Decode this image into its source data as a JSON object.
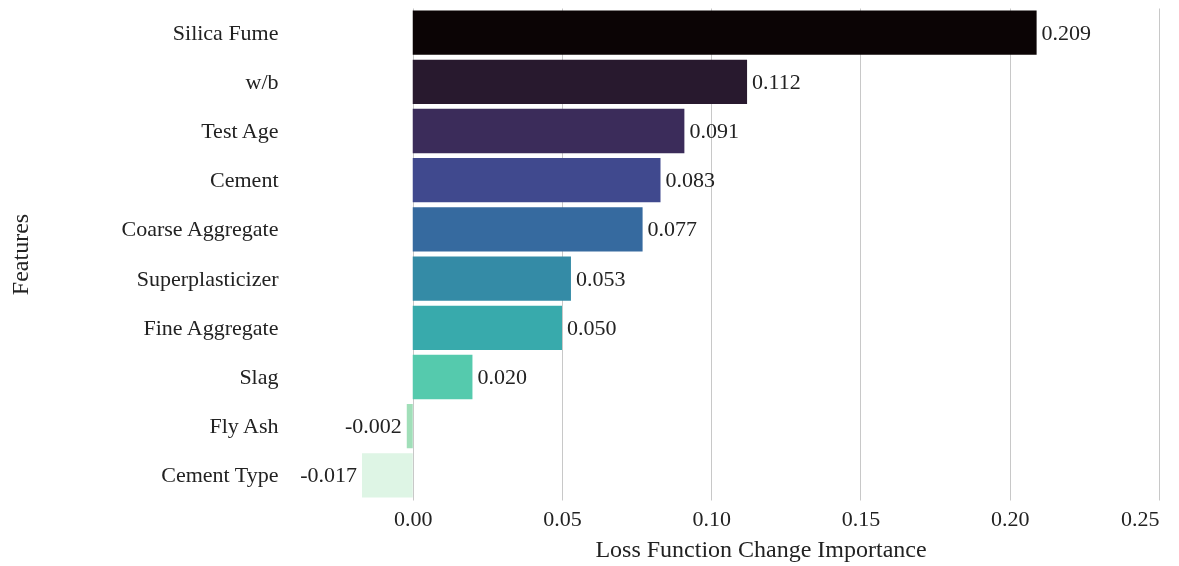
{
  "chart_data": {
    "type": "bar",
    "orientation": "horizontal",
    "xlabel": "Loss Function Change Importance",
    "ylabel": "Features",
    "categories": [
      "Silica Fume",
      "w/b",
      "Test Age",
      "Cement",
      "Coarse Aggregate",
      "Superplasticizer",
      "Fine Aggregate",
      "Slag",
      "Fly Ash",
      "Cement Type"
    ],
    "values": [
      0.209,
      0.112,
      0.091,
      0.083,
      0.077,
      0.053,
      0.05,
      0.02,
      -0.002,
      -0.017
    ],
    "value_labels": [
      "0.209",
      "0.112",
      "0.091",
      "0.083",
      "0.077",
      "0.053",
      "0.050",
      "0.020",
      "-0.002",
      "-0.017"
    ],
    "colors": [
      "#0b0405",
      "#28192e",
      "#3b2c5a",
      "#40498e",
      "#366a9f",
      "#348ba6",
      "#38aaac",
      "#55caad",
      "#a1dfb9",
      "#def5e5"
    ],
    "xlim": [
      -0.017,
      0.25
    ],
    "xticks": [
      {
        "value": 0,
        "label": "0.00"
      },
      {
        "value": 0.05,
        "label": "0.05"
      },
      {
        "value": 0.1,
        "label": "0.10"
      },
      {
        "value": 0.15,
        "label": "0.15"
      },
      {
        "value": 0.2,
        "label": "0.20"
      },
      {
        "value": 0.25,
        "label": "0.25"
      }
    ],
    "grid": "x"
  }
}
